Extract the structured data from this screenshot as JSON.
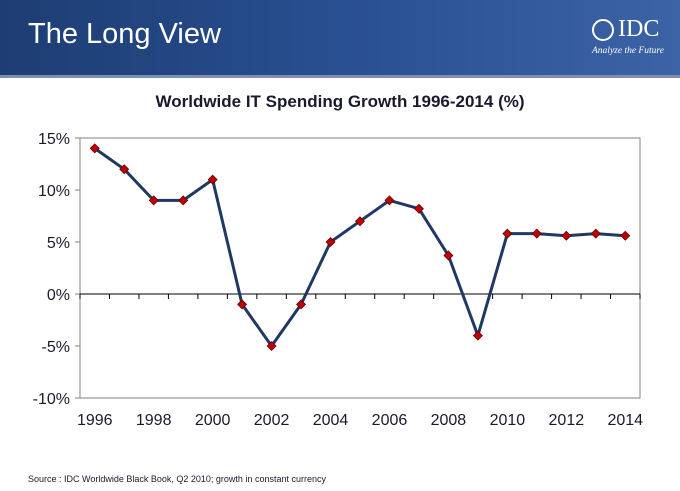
{
  "slide": {
    "title": "The Long View",
    "logo_text": "IDC",
    "logo_tagline": "Analyze the Future",
    "source": "Source : IDC Worldwide Black Book, Q2 2010; growth in constant currency"
  },
  "colors": {
    "header": "#2a5194",
    "line": "#1f3864",
    "marker": "#c00000"
  },
  "chart_data": {
    "type": "line",
    "title": "Worldwide IT Spending Growth 1996-2014 (%)",
    "xlabel": "",
    "ylabel": "",
    "x": [
      1996,
      1997,
      1998,
      1999,
      2000,
      2001,
      2002,
      2003,
      2004,
      2005,
      2006,
      2007,
      2008,
      2009,
      2010,
      2011,
      2012,
      2013,
      2014
    ],
    "series": [
      {
        "values": [
          14,
          12,
          9,
          9,
          11,
          -1,
          -5,
          -1,
          5,
          7,
          9,
          8.2,
          3.7,
          -4,
          5.8,
          5.8,
          5.6,
          5.8,
          5.6
        ]
      }
    ],
    "ylim": [
      -10,
      15
    ],
    "yticks": [
      15,
      10,
      5,
      0,
      -5,
      -10
    ],
    "ytick_labels": [
      "15%",
      "10%",
      "5%",
      "0%",
      "-5%",
      "-10%"
    ],
    "xtick_labels": [
      "1996",
      "1998",
      "2000",
      "2002",
      "2004",
      "2006",
      "2008",
      "2010",
      "2012",
      "2014"
    ],
    "grid": false,
    "legend": "none"
  }
}
